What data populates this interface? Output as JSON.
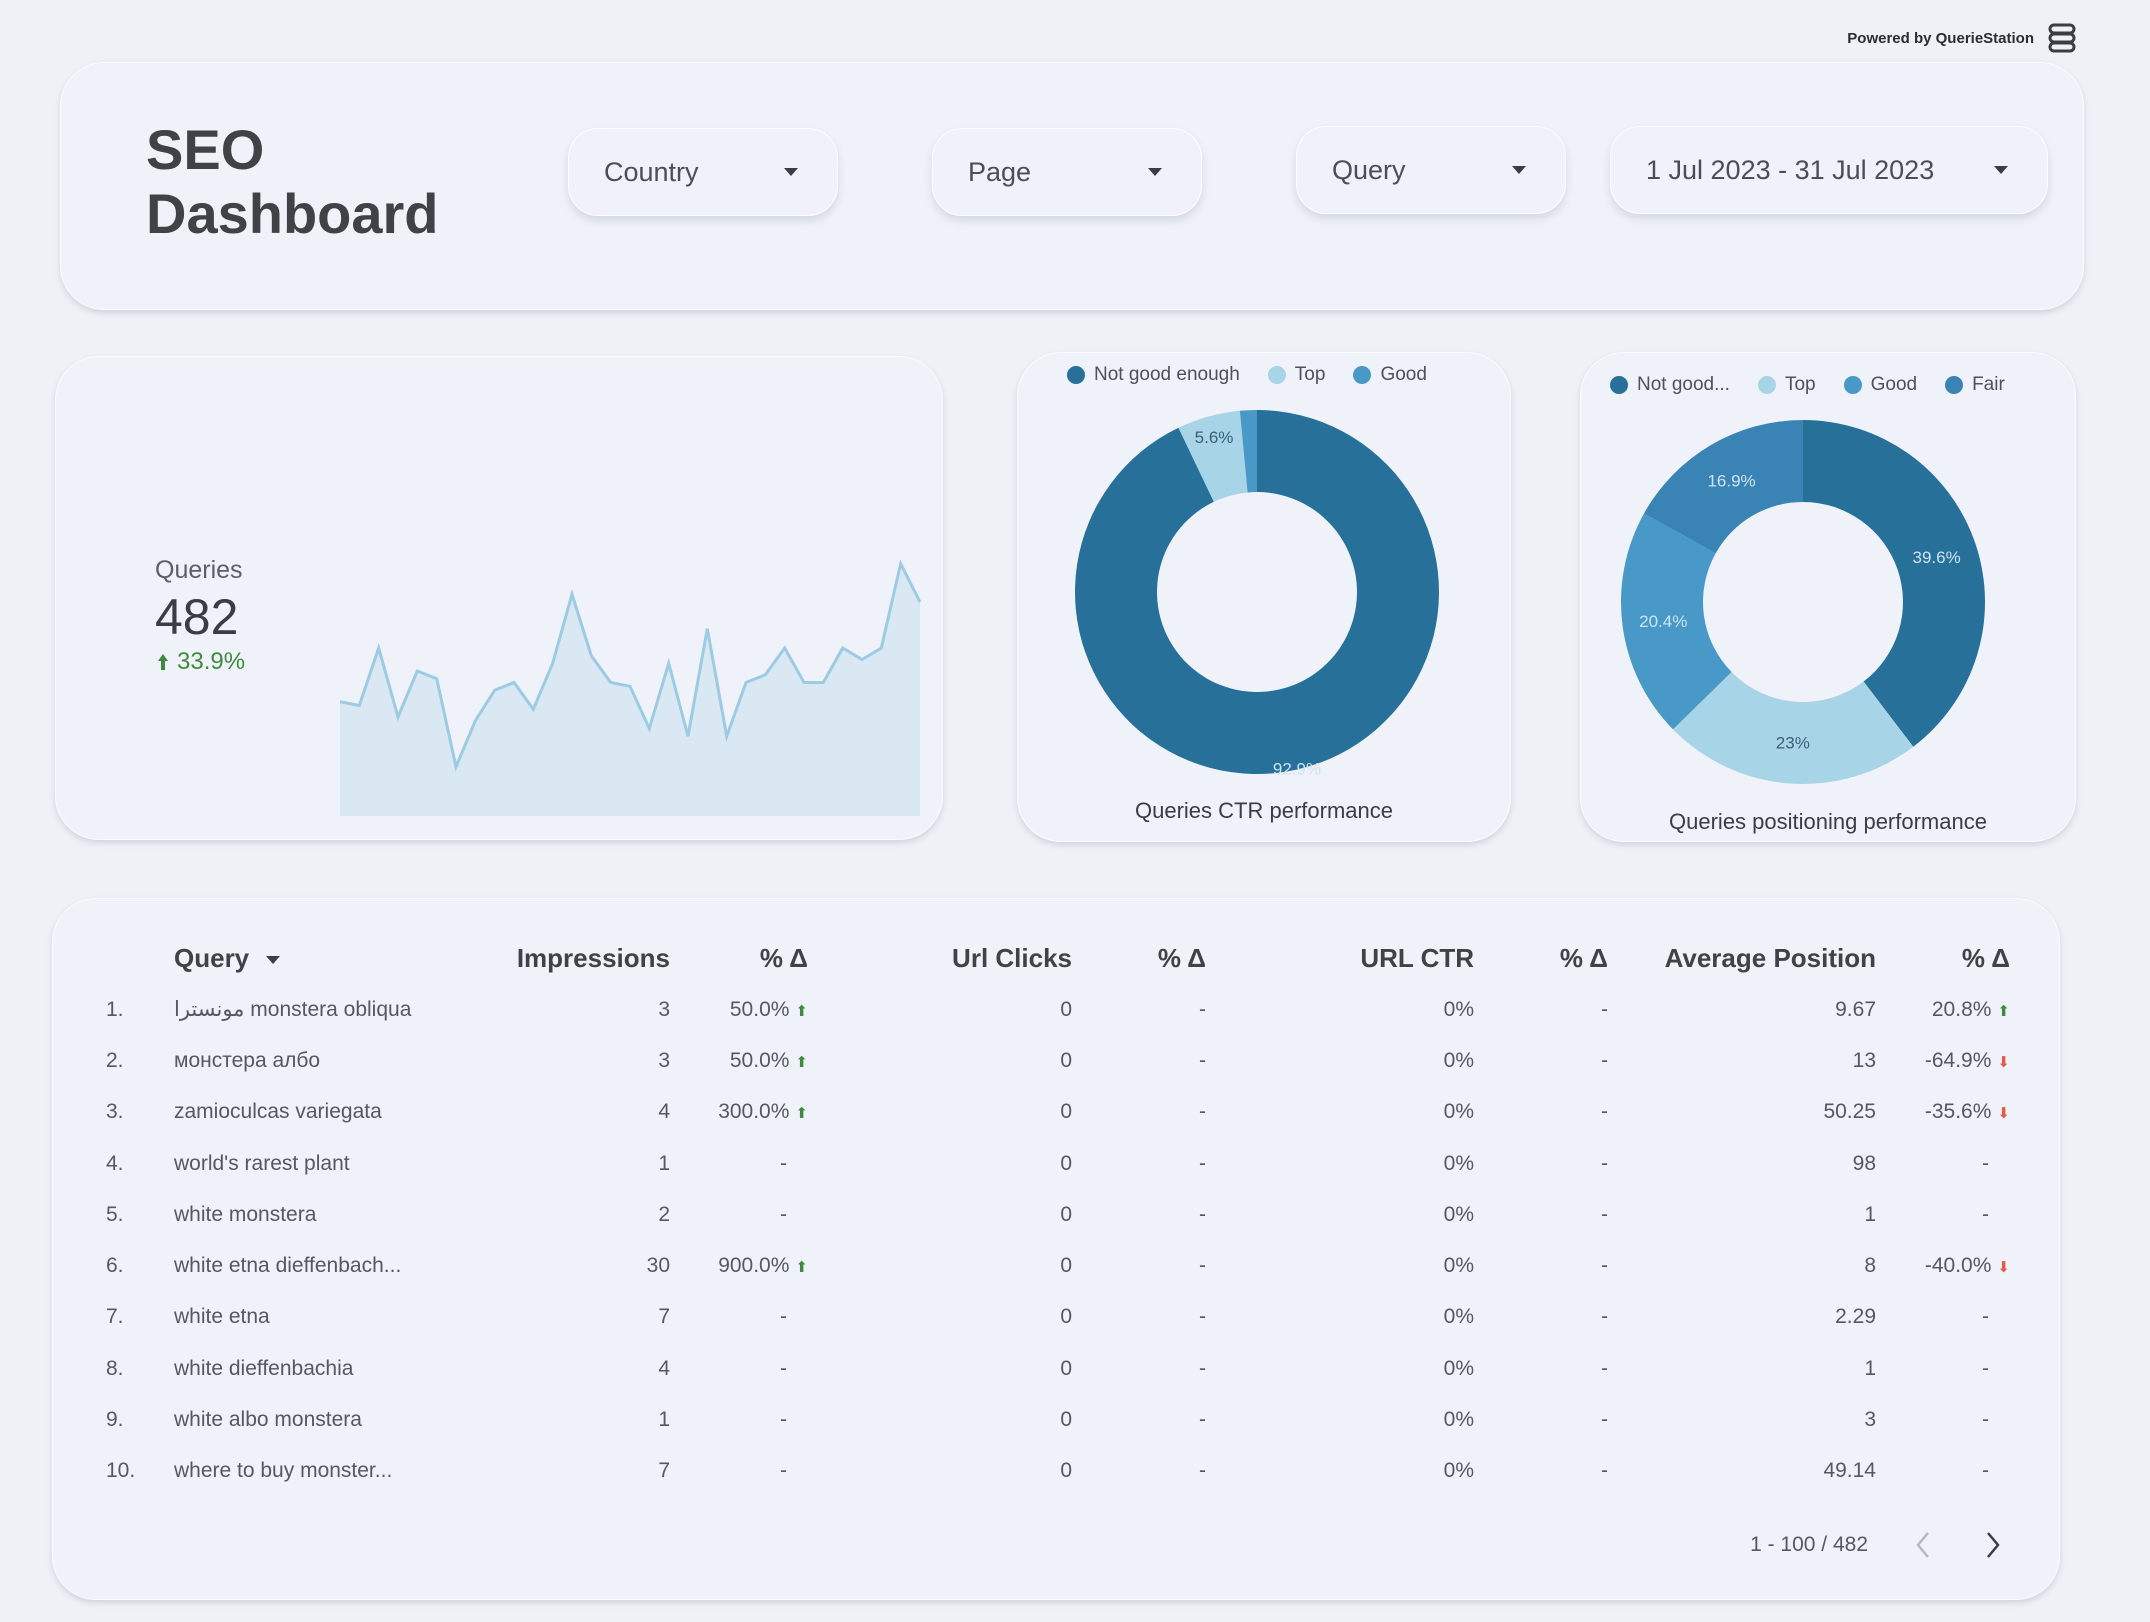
{
  "powered_by": "Powered by QuerieStation",
  "header": {
    "title_line1": "SEO",
    "title_line2": "Dashboard",
    "filters": {
      "country": "Country",
      "page": "Page",
      "query": "Query",
      "date_range": "1 Jul 2023 - 31 Jul 2023"
    }
  },
  "kpi": {
    "label": "Queries",
    "value": "482",
    "change": "33.9%",
    "trend_values": [
      22,
      21,
      36,
      18,
      30,
      28,
      5,
      17,
      25,
      27,
      20,
      32,
      50,
      34,
      27,
      26,
      15,
      32,
      13,
      41,
      13,
      27,
      29,
      36,
      27,
      27,
      36,
      33,
      36,
      58,
      48
    ]
  },
  "ctr_chart": {
    "title": "Queries CTR performance",
    "legend": [
      "Not good enough",
      "Top",
      "Good"
    ],
    "colors": {
      "not_good": "#27709a",
      "top": "#a8d4e8",
      "good": "#4899c8"
    },
    "slices": [
      {
        "name": "Not good enough",
        "value": 92.9,
        "label": "92.9%"
      },
      {
        "name": "Top",
        "value": 5.6,
        "label": "5.6%"
      },
      {
        "name": "Good",
        "value": 1.5,
        "label": ""
      }
    ]
  },
  "position_chart": {
    "title": "Queries positioning performance",
    "legend": [
      "Not good...",
      "Top",
      "Good",
      "Fair"
    ],
    "colors": {
      "not_good": "#27709a",
      "top": "#a8d4e8",
      "good": "#4899c8",
      "fair": "#3a84b5"
    },
    "slices": [
      {
        "name": "Not good...",
        "value": 39.6,
        "label": "39.6%"
      },
      {
        "name": "Top",
        "value": 23,
        "label": "23%"
      },
      {
        "name": "Good",
        "value": 20.4,
        "label": "20.4%"
      },
      {
        "name": "Fair",
        "value": 16.9,
        "label": "16.9%"
      }
    ]
  },
  "table": {
    "headers": {
      "query": "Query",
      "impressions": "Impressions",
      "imp_delta": "% Δ",
      "clicks": "Url Clicks",
      "clicks_delta": "% Δ",
      "ctr": "URL CTR",
      "ctr_delta": "% Δ",
      "position": "Average Position",
      "pos_delta": "% Δ"
    },
    "rows": [
      {
        "idx": "1.",
        "query": "مونسترا monstera obliqua",
        "impressions": "3",
        "imp_delta": "50.0%",
        "imp_dir": "up",
        "clicks": "0",
        "clicks_delta": "-",
        "ctr": "0%",
        "ctr_delta": "-",
        "position": "9.67",
        "pos_delta": "20.8%",
        "pos_dir": "up"
      },
      {
        "idx": "2.",
        "query": "монстера албо",
        "impressions": "3",
        "imp_delta": "50.0%",
        "imp_dir": "up",
        "clicks": "0",
        "clicks_delta": "-",
        "ctr": "0%",
        "ctr_delta": "-",
        "position": "13",
        "pos_delta": "-64.9%",
        "pos_dir": "down"
      },
      {
        "idx": "3.",
        "query": "zamioculcas variegata",
        "impressions": "4",
        "imp_delta": "300.0%",
        "imp_dir": "up",
        "clicks": "0",
        "clicks_delta": "-",
        "ctr": "0%",
        "ctr_delta": "-",
        "position": "50.25",
        "pos_delta": "-35.6%",
        "pos_dir": "down"
      },
      {
        "idx": "4.",
        "query": "world's rarest plant",
        "impressions": "1",
        "imp_delta": "-",
        "imp_dir": "",
        "clicks": "0",
        "clicks_delta": "-",
        "ctr": "0%",
        "ctr_delta": "-",
        "position": "98",
        "pos_delta": "-",
        "pos_dir": ""
      },
      {
        "idx": "5.",
        "query": "white monstera",
        "impressions": "2",
        "imp_delta": "-",
        "imp_dir": "",
        "clicks": "0",
        "clicks_delta": "-",
        "ctr": "0%",
        "ctr_delta": "-",
        "position": "1",
        "pos_delta": "-",
        "pos_dir": ""
      },
      {
        "idx": "6.",
        "query": "white etna dieffenbach...",
        "impressions": "30",
        "imp_delta": "900.0%",
        "imp_dir": "up",
        "clicks": "0",
        "clicks_delta": "-",
        "ctr": "0%",
        "ctr_delta": "-",
        "position": "8",
        "pos_delta": "-40.0%",
        "pos_dir": "down"
      },
      {
        "idx": "7.",
        "query": "white etna",
        "impressions": "7",
        "imp_delta": "-",
        "imp_dir": "",
        "clicks": "0",
        "clicks_delta": "-",
        "ctr": "0%",
        "ctr_delta": "-",
        "position": "2.29",
        "pos_delta": "-",
        "pos_dir": ""
      },
      {
        "idx": "8.",
        "query": "white dieffenbachia",
        "impressions": "4",
        "imp_delta": "-",
        "imp_dir": "",
        "clicks": "0",
        "clicks_delta": "-",
        "ctr": "0%",
        "ctr_delta": "-",
        "position": "1",
        "pos_delta": "-",
        "pos_dir": ""
      },
      {
        "idx": "9.",
        "query": "white albo monstera",
        "impressions": "1",
        "imp_delta": "-",
        "imp_dir": "",
        "clicks": "0",
        "clicks_delta": "-",
        "ctr": "0%",
        "ctr_delta": "-",
        "position": "3",
        "pos_delta": "-",
        "pos_dir": ""
      },
      {
        "idx": "10.",
        "query": "where to buy monster...",
        "impressions": "7",
        "imp_delta": "-",
        "imp_dir": "",
        "clicks": "0",
        "clicks_delta": "-",
        "ctr": "0%",
        "ctr_delta": "-",
        "position": "49.14",
        "pos_delta": "-",
        "pos_dir": ""
      }
    ],
    "pagination": "1 - 100 / 482"
  }
}
